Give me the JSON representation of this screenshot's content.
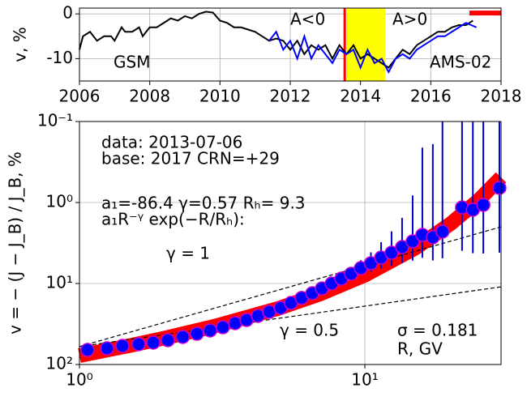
{
  "chart_data": [
    {
      "type": "line",
      "ylabel": "v, %",
      "xlim": [
        2006,
        2018
      ],
      "ylim": [
        -15,
        1.3
      ],
      "xticks": [
        2006,
        2008,
        2010,
        2012,
        2014,
        2016,
        2018
      ],
      "yticks": [
        -10,
        0
      ],
      "grid": true,
      "series": [
        {
          "name": "GSM",
          "color": "#000000",
          "x": [
            2006.0,
            2006.1,
            2006.3,
            2006.5,
            2006.7,
            2006.9,
            2007.0,
            2007.2,
            2007.3,
            2007.5,
            2007.7,
            2007.8,
            2008.0,
            2008.2,
            2008.4,
            2008.6,
            2008.8,
            2009.0,
            2009.2,
            2009.4,
            2009.6,
            2009.8,
            2010.0,
            2010.2,
            2010.4,
            2010.6,
            2010.8,
            2011.0,
            2011.2,
            2011.4,
            2011.6,
            2011.8,
            2012.0,
            2012.2,
            2012.4,
            2012.6,
            2012.8,
            2013.0,
            2013.2,
            2013.4,
            2013.6,
            2013.8,
            2014.0,
            2014.2,
            2014.4,
            2014.6,
            2014.8,
            2015.0,
            2015.2,
            2015.4,
            2015.6,
            2015.8,
            2016.0,
            2016.2,
            2016.4,
            2016.6,
            2016.8,
            2017.0,
            2017.2
          ],
          "values": [
            -8,
            -5,
            -4,
            -6,
            -5,
            -5,
            -6,
            -3,
            -4,
            -4,
            -3,
            -5,
            -3,
            -3,
            -2,
            -1,
            -1.5,
            -0.5,
            -1,
            0,
            0.5,
            0.3,
            -1.5,
            -2,
            -3,
            -3,
            -3.5,
            -4,
            -5,
            -6,
            -5.5,
            -6,
            -8,
            -6,
            -9,
            -7,
            -8,
            -7,
            -10,
            -7,
            -9,
            -7,
            -10,
            -9,
            -10,
            -11,
            -12,
            -10,
            -8,
            -9,
            -7,
            -6,
            -5,
            -4,
            -4,
            -3,
            -2.5,
            -2.5,
            -1.5
          ]
        },
        {
          "name": "AMS-02",
          "color": "#0000ff",
          "x": [
            2011.4,
            2011.6,
            2011.8,
            2012.0,
            2012.2,
            2012.4,
            2012.6,
            2012.8,
            2013.0,
            2013.2,
            2013.4,
            2013.6,
            2013.8,
            2014.0,
            2014.2,
            2014.4,
            2014.6,
            2014.8,
            2015.0,
            2015.2,
            2015.4,
            2015.6,
            2015.8,
            2016.0,
            2016.2,
            2016.4,
            2016.6,
            2016.8,
            2017.0,
            2017.3
          ],
          "values": [
            -6,
            -4,
            -8,
            -6,
            -10,
            -5,
            -10,
            -7,
            -9,
            -11,
            -8,
            -9,
            -8,
            -12,
            -8,
            -11,
            -10,
            -13,
            -10,
            -9,
            -10,
            -8,
            -7,
            -6,
            -5,
            -5,
            -4,
            -3,
            -2,
            -3
          ]
        }
      ],
      "annotations": [
        "A<0",
        "A>0"
      ],
      "vline": {
        "x": 2013.55,
        "color": "#ff0000"
      },
      "span": {
        "x": [
          2013.6,
          2014.7
        ],
        "color": "#ffff00"
      },
      "bar": {
        "x": [
          2017.1,
          2018
        ],
        "y": 0.2,
        "color": "#ff0000"
      }
    },
    {
      "type": "scatter",
      "xlabel": "R, GV",
      "ylabel": "v = − (J − J_B) / J_B, %",
      "xlog": true,
      "ylog": true,
      "xlim": [
        1,
        30
      ],
      "ylim": [
        100,
        0.1
      ],
      "xticks": [
        {
          "value": 1,
          "label": "10⁰"
        },
        {
          "value": 10,
          "label": "10¹"
        }
      ],
      "yticks": [
        {
          "value": 100,
          "label": "10²"
        },
        {
          "value": 10,
          "label": "10¹"
        },
        {
          "value": 1,
          "label": "10⁰"
        },
        {
          "value": 0.1,
          "label": "10⁻¹"
        }
      ],
      "grid": true,
      "points": {
        "color": "#0000ff",
        "edgecolor": "#cc00cc",
        "errorcolor": "#0000cc",
        "x": [
          1.067,
          1.249,
          1.414,
          1.612,
          1.814,
          2.04,
          2.3,
          2.58,
          2.87,
          3.18,
          3.51,
          3.85,
          4.22,
          4.62,
          5.07,
          5.51,
          6.0,
          6.54,
          7.07,
          7.65,
          8.27,
          8.95,
          9.68,
          10.5,
          11.4,
          12.4,
          13.5,
          14.7,
          15.9,
          17.3,
          18.7,
          21.9,
          23.9,
          26.0,
          29.6
        ],
        "values": [
          66.1,
          63.1,
          58.9,
          56.2,
          53.7,
          50.1,
          45.7,
          41.7,
          38.0,
          34.7,
          30.9,
          28.2,
          25.1,
          22.4,
          20.0,
          17.4,
          15.1,
          13.2,
          11.5,
          10.0,
          8.71,
          7.59,
          6.46,
          5.62,
          4.79,
          4.17,
          3.55,
          3.02,
          2.51,
          2.69,
          2.29,
          1.15,
          1.23,
          1.07,
          0.66
        ],
        "errors": [
          0.5,
          0.5,
          0.5,
          0.5,
          0.5,
          0.5,
          0.5,
          0.5,
          0.5,
          0.5,
          0.5,
          0.5,
          0.5,
          0.5,
          0.5,
          0.5,
          0.5,
          0.6,
          0.6,
          0.7,
          0.8,
          1.0,
          1.3,
          1.5,
          1.7,
          1.9,
          2.0,
          2.2,
          2.3,
          2.5,
          2.6,
          2.8,
          3.0,
          3.2,
          3.5
        ]
      },
      "fit": {
        "color": "#ff0000",
        "x": [
          1,
          1.5,
          2,
          3,
          5,
          7,
          10,
          15,
          20,
          25,
          30
        ],
        "values": [
          77.6,
          58.4,
          46.9,
          33.4,
          20.2,
          13.4,
          7.9,
          3.67,
          1.82,
          0.94,
          0.49
        ]
      },
      "guides": [
        {
          "label": "γ = 1",
          "x": [
            1,
            30
          ],
          "values": [
            60,
            2
          ]
        },
        {
          "label": "γ = 0.5",
          "x": [
            1,
            30
          ],
          "values": [
            60,
            11
          ]
        }
      ],
      "annotations": [
        "data: 2013-07-06",
        "base: 2017   CRN=+29",
        "a₁=-86.4  γ=0.57  Rₕ=  9.3",
        "a₁R⁻ᵞ exp(−R/Rₕ):",
        "σ = 0.181"
      ]
    }
  ]
}
